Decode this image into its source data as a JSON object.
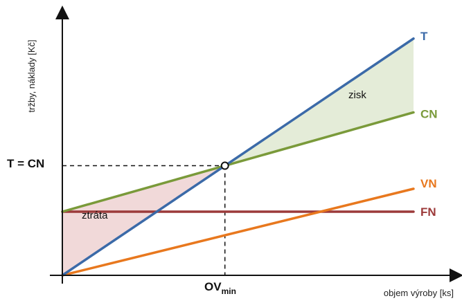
{
  "chart_data": {
    "type": "line",
    "title": "",
    "xlabel": "objem výroby [ks]",
    "ylabel": "tržby, náklady [Kč]",
    "xlim": [
      0,
      10
    ],
    "ylim": [
      0,
      10
    ],
    "series": [
      {
        "name": "T",
        "color": "#3b6aa8",
        "x": [
          0,
          10
        ],
        "y": [
          0,
          9.3
        ]
      },
      {
        "name": "CN",
        "color": "#7a9a3a",
        "x": [
          0,
          10
        ],
        "y": [
          2.5,
          6.4
        ]
      },
      {
        "name": "VN",
        "color": "#e8781e",
        "x": [
          0,
          10
        ],
        "y": [
          0,
          3.4
        ]
      },
      {
        "name": "FN",
        "color": "#9c3a3a",
        "x": [
          0,
          10
        ],
        "y": [
          2.5,
          2.5
        ]
      }
    ],
    "annotations": {
      "breakeven_y_label": "T = CN",
      "breakeven_x_label_main": "OV",
      "breakeven_x_label_sub": "min",
      "profit_label": "zisk",
      "loss_label": "ztráta"
    },
    "region_colors": {
      "profit": "#e4ecd8",
      "loss": "#f1d9d9"
    },
    "grid": false,
    "legend": "none"
  }
}
